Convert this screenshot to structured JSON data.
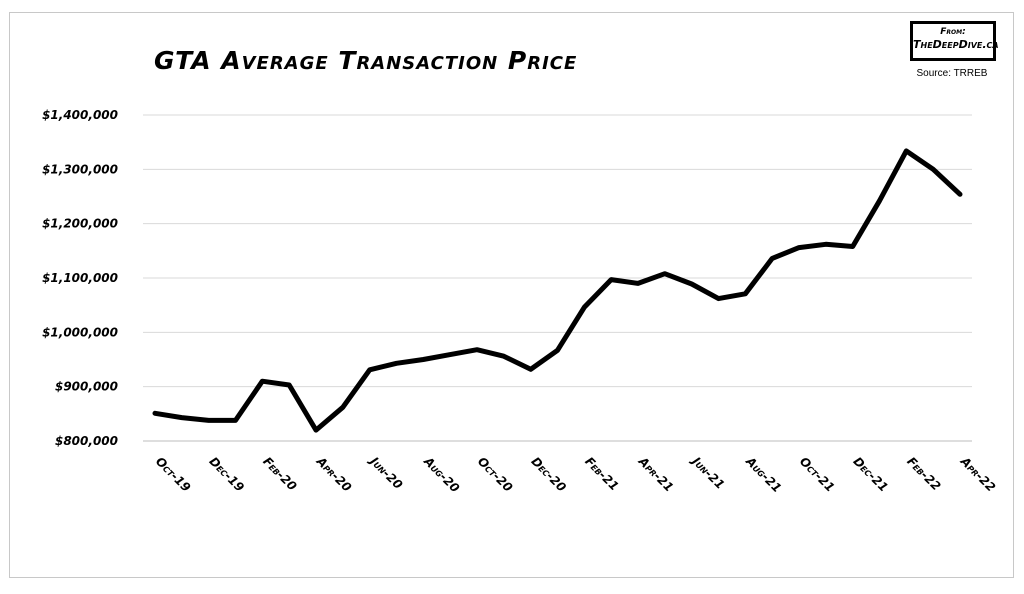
{
  "chart_data": {
    "type": "line",
    "title": "GTA Average Transaction Price",
    "xlabel": "",
    "ylabel": "",
    "ylim": [
      800000,
      1400000
    ],
    "yticks": [
      800000,
      900000,
      1000000,
      1100000,
      1200000,
      1300000,
      1400000
    ],
    "ytick_labels": [
      "$800,000",
      "$900,000",
      "$1,000,000",
      "$1,100,000",
      "$1,200,000",
      "$1,300,000",
      "$1,400,000"
    ],
    "grid": "horizontal",
    "x": [
      "Oct-19",
      "Nov-19",
      "Dec-19",
      "Jan-20",
      "Feb-20",
      "Mar-20",
      "Apr-20",
      "May-20",
      "Jun-20",
      "Jul-20",
      "Aug-20",
      "Sep-20",
      "Oct-20",
      "Nov-20",
      "Dec-20",
      "Jan-21",
      "Feb-21",
      "Mar-21",
      "Apr-21",
      "May-21",
      "Jun-21",
      "Jul-21",
      "Aug-21",
      "Sep-21",
      "Oct-21",
      "Nov-21",
      "Dec-21",
      "Jan-22",
      "Feb-22",
      "Mar-22",
      "Apr-22"
    ],
    "xtick_labels": [
      "Oct-19",
      "Dec-19",
      "Feb-20",
      "Apr-20",
      "Jun-20",
      "Aug-20",
      "Oct-20",
      "Dec-20",
      "Feb-21",
      "Apr-21",
      "Jun-21",
      "Aug-21",
      "Oct-21",
      "Dec-21",
      "Feb-22",
      "Apr-22"
    ],
    "series": [
      {
        "values": [
          851000,
          843000,
          838000,
          838000,
          910000,
          903000,
          820000,
          862000,
          931000,
          943000,
          950000,
          959000,
          968000,
          956000,
          932000,
          967000,
          1046000,
          1097000,
          1090000,
          1108000,
          1089000,
          1062000,
          1071000,
          1136000,
          1156000,
          1162000,
          1158000,
          1242000,
          1334000,
          1300000,
          1254000
        ],
        "color": "#000000"
      }
    ]
  },
  "badge": {
    "line1": "From:",
    "line2": "TheDeepDive.ca"
  },
  "source": "Source: TRREB"
}
